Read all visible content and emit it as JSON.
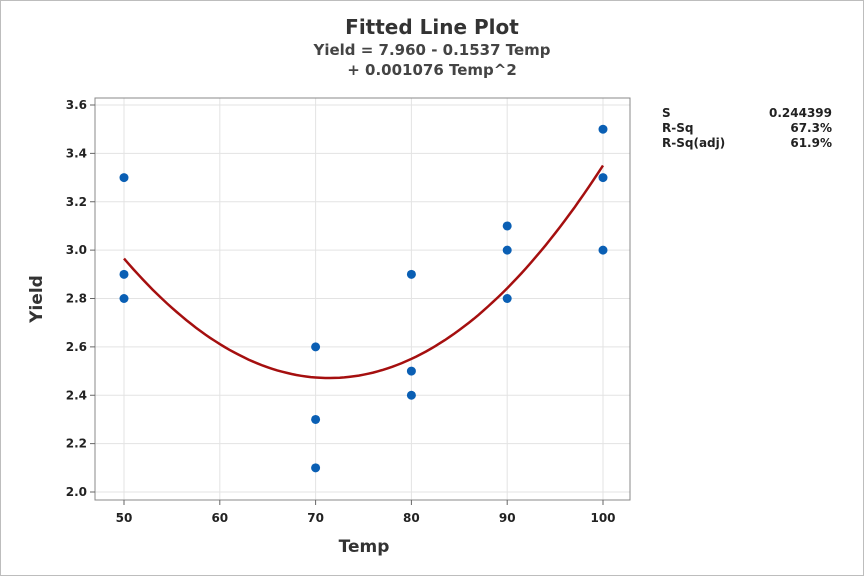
{
  "chart_data": {
    "type": "scatter",
    "title": "Fitted Line Plot",
    "subtitle_lines": [
      "Yield = 7.960 - 0.1537 Temp",
      "+ 0.001076 Temp^2"
    ],
    "xlabel": "Temp",
    "ylabel": "Yield",
    "xlim": [
      47,
      103
    ],
    "ylim": [
      1.97,
      3.63
    ],
    "xticks": [
      50,
      60,
      70,
      80,
      90,
      100
    ],
    "yticks": [
      "2.0",
      "2.2",
      "2.4",
      "2.6",
      "2.8",
      "3.0",
      "3.2",
      "3.4",
      "3.6"
    ],
    "grid": true,
    "points": {
      "x": [
        50,
        50,
        50,
        70,
        70,
        70,
        80,
        80,
        80,
        90,
        90,
        90,
        100,
        100,
        100
      ],
      "y": [
        3.3,
        2.9,
        2.8,
        2.6,
        2.3,
        2.1,
        2.9,
        2.5,
        2.4,
        3.1,
        3.0,
        2.8,
        3.5,
        3.3,
        3.0
      ]
    },
    "fit": {
      "intercept": 7.96,
      "b1": -0.1537,
      "b2": 0.001076,
      "range": [
        50,
        100
      ]
    },
    "colors": {
      "points": "#0a5fb4",
      "fit": "#a50f0f",
      "grid": "#e3e3e3"
    },
    "stats": [
      {
        "label": "S",
        "value": "0.244399"
      },
      {
        "label": "R-Sq",
        "value": "67.3%"
      },
      {
        "label": "R-Sq(adj)",
        "value": "61.9%"
      }
    ]
  }
}
